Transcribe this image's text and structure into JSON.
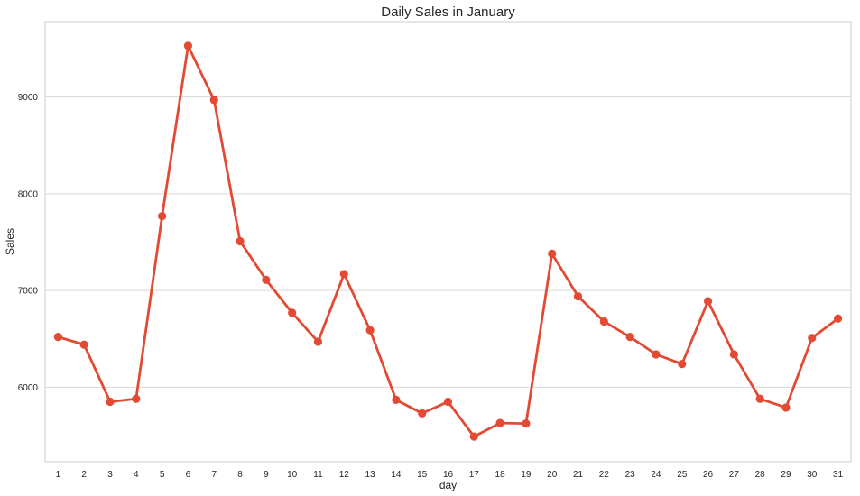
{
  "chart_data": {
    "type": "line",
    "title": "Daily Sales in January",
    "xlabel": "day",
    "ylabel": "Sales",
    "categories": [
      "1",
      "2",
      "3",
      "4",
      "5",
      "6",
      "7",
      "8",
      "9",
      "10",
      "11",
      "12",
      "13",
      "14",
      "15",
      "16",
      "17",
      "18",
      "19",
      "20",
      "21",
      "22",
      "23",
      "24",
      "25",
      "26",
      "27",
      "28",
      "29",
      "30",
      "31"
    ],
    "series": [
      {
        "values": [
          6520,
          6440,
          5850,
          5880,
          7770,
          9530,
          8970,
          7510,
          7110,
          6770,
          6470,
          7170,
          6590,
          5870,
          5730,
          5850,
          5490,
          5630,
          5625,
          7380,
          6940,
          6680,
          6520,
          6340,
          6240,
          6890,
          6340,
          5880,
          5790,
          6510,
          6710
        ],
        "color": "#e24a33"
      }
    ],
    "ylim": [
      5230,
      9780
    ],
    "yticks": [
      6000,
      7000,
      8000,
      9000
    ],
    "grid": "horizontal",
    "legend": "none",
    "colors": {
      "line": "#e24a33",
      "grid": "#d9d9d9",
      "frame": "#cccccc",
      "text": "#262626"
    }
  }
}
